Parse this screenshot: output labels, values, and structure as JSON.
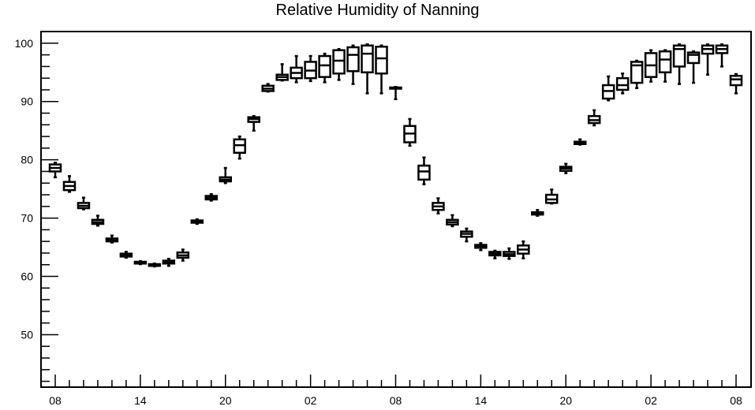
{
  "chart_data": {
    "type": "boxplot",
    "title": "Relative Humidity of Nanning",
    "xlabel": "",
    "ylabel": "",
    "ylim": [
      41,
      102
    ],
    "xlim": [
      0,
      48
    ],
    "grid": false,
    "x_tick_labels": [
      {
        "x": 0,
        "label": "08"
      },
      {
        "x": 6,
        "label": "14"
      },
      {
        "x": 12,
        "label": "20"
      },
      {
        "x": 18,
        "label": "02"
      },
      {
        "x": 24,
        "label": "08"
      },
      {
        "x": 30,
        "label": "14"
      },
      {
        "x": 36,
        "label": "20"
      },
      {
        "x": 42,
        "label": "02"
      },
      {
        "x": 48,
        "label": "08"
      }
    ],
    "y_tick_labels": [
      {
        "y": 50,
        "label": "50"
      },
      {
        "y": 60,
        "label": "60"
      },
      {
        "y": 70,
        "label": "70"
      },
      {
        "y": 80,
        "label": "80"
      },
      {
        "y": 90,
        "label": "90"
      },
      {
        "y": 100,
        "label": "100"
      }
    ],
    "boxes": [
      {
        "x": 0,
        "min": 77.0,
        "q1": 78.0,
        "median": 78.6,
        "q3": 79.2,
        "max": 79.5
      },
      {
        "x": 1,
        "min": 74.5,
        "q1": 74.8,
        "median": 75.5,
        "q3": 76.2,
        "max": 77.2
      },
      {
        "x": 2,
        "min": 71.5,
        "q1": 71.7,
        "median": 72.1,
        "q3": 72.6,
        "max": 73.5
      },
      {
        "x": 3,
        "min": 68.7,
        "q1": 69.0,
        "median": 69.3,
        "q3": 69.7,
        "max": 70.4
      },
      {
        "x": 4,
        "min": 65.8,
        "q1": 66.0,
        "median": 66.2,
        "q3": 66.5,
        "max": 67.0
      },
      {
        "x": 5,
        "min": 63.2,
        "q1": 63.4,
        "median": 63.6,
        "q3": 63.9,
        "max": 64.2
      },
      {
        "x": 6,
        "min": 62.1,
        "q1": 62.2,
        "median": 62.3,
        "q3": 62.5,
        "max": 62.6
      },
      {
        "x": 7,
        "min": 61.7,
        "q1": 61.8,
        "median": 61.9,
        "q3": 62.1,
        "max": 62.2
      },
      {
        "x": 8,
        "min": 61.8,
        "q1": 62.2,
        "median": 62.4,
        "q3": 62.7,
        "max": 63.0
      },
      {
        "x": 9,
        "min": 62.7,
        "q1": 63.2,
        "median": 63.6,
        "q3": 64.1,
        "max": 64.6
      },
      {
        "x": 10,
        "min": 69.0,
        "q1": 69.2,
        "median": 69.4,
        "q3": 69.6,
        "max": 69.8
      },
      {
        "x": 11,
        "min": 73.0,
        "q1": 73.2,
        "median": 73.5,
        "q3": 73.8,
        "max": 74.1
      },
      {
        "x": 12,
        "min": 76.0,
        "q1": 76.3,
        "median": 76.6,
        "q3": 77.0,
        "max": 78.6
      },
      {
        "x": 13,
        "min": 80.2,
        "q1": 81.2,
        "median": 82.5,
        "q3": 83.5,
        "max": 84.0
      },
      {
        "x": 14,
        "min": 85.0,
        "q1": 86.5,
        "median": 87.0,
        "q3": 87.3,
        "max": 87.5
      },
      {
        "x": 15,
        "min": 91.7,
        "q1": 91.8,
        "median": 92.2,
        "q3": 92.7,
        "max": 93.0
      },
      {
        "x": 16,
        "min": 93.6,
        "q1": 93.7,
        "median": 94.2,
        "q3": 94.6,
        "max": 96.4
      },
      {
        "x": 17,
        "min": 93.3,
        "q1": 94.0,
        "median": 94.9,
        "q3": 95.8,
        "max": 97.8
      },
      {
        "x": 18,
        "min": 93.5,
        "q1": 94.0,
        "median": 95.3,
        "q3": 96.8,
        "max": 97.8
      },
      {
        "x": 19,
        "min": 93.3,
        "q1": 94.2,
        "median": 96.2,
        "q3": 97.8,
        "max": 98.2
      },
      {
        "x": 20,
        "min": 93.7,
        "q1": 94.8,
        "median": 97.0,
        "q3": 98.8,
        "max": 99.0
      },
      {
        "x": 21,
        "min": 93.0,
        "q1": 95.2,
        "median": 98.0,
        "q3": 99.3,
        "max": 99.6
      },
      {
        "x": 22,
        "min": 91.4,
        "q1": 95.0,
        "median": 98.2,
        "q3": 99.6,
        "max": 99.8
      },
      {
        "x": 23,
        "min": 91.4,
        "q1": 94.8,
        "median": 97.4,
        "q3": 99.4,
        "max": 99.6
      },
      {
        "x": 24,
        "min": 90.4,
        "q1": 92.2,
        "median": 92.3,
        "q3": 92.4,
        "max": 92.5
      },
      {
        "x": 25,
        "min": 82.4,
        "q1": 83.0,
        "median": 84.5,
        "q3": 85.8,
        "max": 87.0
      },
      {
        "x": 26,
        "min": 75.8,
        "q1": 76.6,
        "median": 78.0,
        "q3": 79.0,
        "max": 80.4
      },
      {
        "x": 27,
        "min": 70.8,
        "q1": 71.4,
        "median": 72.0,
        "q3": 72.6,
        "max": 73.4
      },
      {
        "x": 28,
        "min": 68.6,
        "q1": 68.9,
        "median": 69.3,
        "q3": 69.7,
        "max": 70.5
      },
      {
        "x": 29,
        "min": 66.0,
        "q1": 66.8,
        "median": 67.3,
        "q3": 67.7,
        "max": 68.2
      },
      {
        "x": 30,
        "min": 64.5,
        "q1": 64.9,
        "median": 65.1,
        "q3": 65.4,
        "max": 65.7
      },
      {
        "x": 31,
        "min": 63.1,
        "q1": 63.6,
        "median": 63.9,
        "q3": 64.2,
        "max": 64.4
      },
      {
        "x": 32,
        "min": 63.0,
        "q1": 63.5,
        "median": 63.8,
        "q3": 64.2,
        "max": 64.8
      },
      {
        "x": 33,
        "min": 63.1,
        "q1": 63.9,
        "median": 64.6,
        "q3": 65.3,
        "max": 66.0
      },
      {
        "x": 34,
        "min": 70.4,
        "q1": 70.6,
        "median": 70.8,
        "q3": 71.0,
        "max": 71.4
      },
      {
        "x": 35,
        "min": 72.5,
        "q1": 72.6,
        "median": 73.2,
        "q3": 74.0,
        "max": 74.9
      },
      {
        "x": 36,
        "min": 77.7,
        "q1": 78.1,
        "median": 78.5,
        "q3": 78.8,
        "max": 79.3
      },
      {
        "x": 37,
        "min": 82.6,
        "q1": 82.7,
        "median": 82.9,
        "q3": 83.1,
        "max": 83.5
      },
      {
        "x": 38,
        "min": 85.9,
        "q1": 86.3,
        "median": 86.8,
        "q3": 87.5,
        "max": 88.5
      },
      {
        "x": 39,
        "min": 90.2,
        "q1": 90.5,
        "median": 91.8,
        "q3": 92.8,
        "max": 94.3
      },
      {
        "x": 40,
        "min": 91.4,
        "q1": 92.0,
        "median": 92.8,
        "q3": 94.0,
        "max": 94.8
      },
      {
        "x": 41,
        "min": 92.3,
        "q1": 93.2,
        "median": 96.2,
        "q3": 96.8,
        "max": 97.0
      },
      {
        "x": 42,
        "min": 93.4,
        "q1": 94.2,
        "median": 96.2,
        "q3": 98.3,
        "max": 98.8
      },
      {
        "x": 43,
        "min": 93.4,
        "q1": 95.0,
        "median": 97.2,
        "q3": 98.6,
        "max": 98.8
      },
      {
        "x": 44,
        "min": 93.0,
        "q1": 96.0,
        "median": 99.0,
        "q3": 99.6,
        "max": 99.8
      },
      {
        "x": 45,
        "min": 93.2,
        "q1": 96.6,
        "median": 98.0,
        "q3": 98.4,
        "max": 98.6
      },
      {
        "x": 46,
        "min": 94.6,
        "q1": 98.2,
        "median": 99.0,
        "q3": 99.6,
        "max": 99.8
      },
      {
        "x": 47,
        "min": 96.0,
        "q1": 98.3,
        "median": 99.0,
        "q3": 99.6,
        "max": 99.8
      },
      {
        "x": 48,
        "min": 91.4,
        "q1": 92.8,
        "median": 93.8,
        "q3": 94.4,
        "max": 94.7
      }
    ]
  }
}
